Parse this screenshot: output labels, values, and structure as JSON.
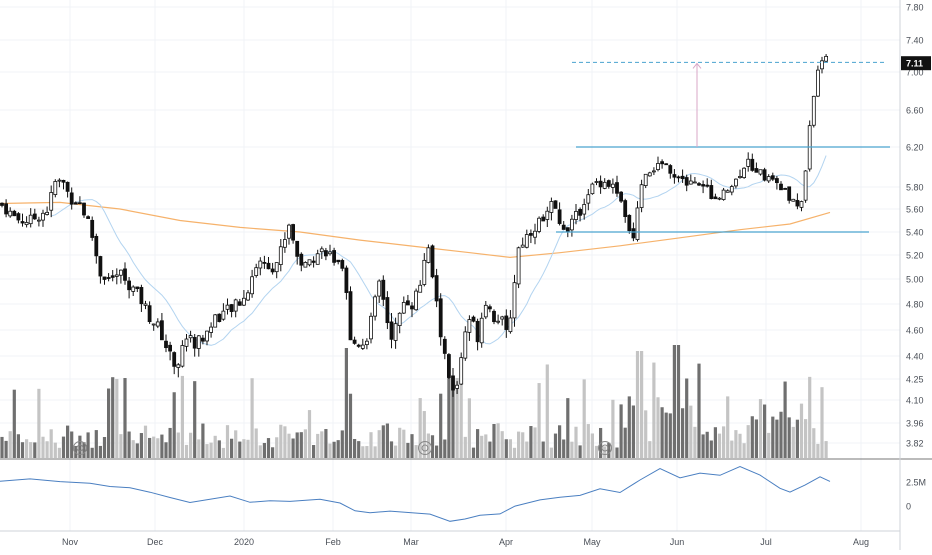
{
  "chart_data": {
    "type": "candlestick",
    "x_axis": {
      "labels": [
        "Nov",
        "Dec",
        "2020",
        "Feb",
        "Mar",
        "Apr",
        "May",
        "Jun",
        "Jul",
        "Aug"
      ]
    },
    "price_axis": {
      "ticks": [
        "7.80",
        "7.40",
        "7.00",
        "6.60",
        "6.20",
        "5.80",
        "5.60",
        "5.40",
        "5.20",
        "5.00",
        "4.80",
        "4.60",
        "4.40",
        "4.25",
        "4.10",
        "3.96",
        "3.82"
      ],
      "log_scale": true,
      "last_price": "7.11"
    },
    "indicator_axis": {
      "ticks": [
        "2.5M",
        "0"
      ]
    },
    "levels": {
      "target_dashed": 7.12,
      "resistance": 6.2,
      "support": 5.4
    },
    "colors": {
      "up": "#ffffff",
      "down": "#111111",
      "volume_dark": "#6f6f6f",
      "volume_light": "#c4c4c4",
      "ma_long": "#f6b26b",
      "ma_short": "#b3d4f0",
      "indicator": "#4a7fc1",
      "level_line": "#4aa3cf",
      "target_arrow": "#d8a7c7"
    }
  }
}
